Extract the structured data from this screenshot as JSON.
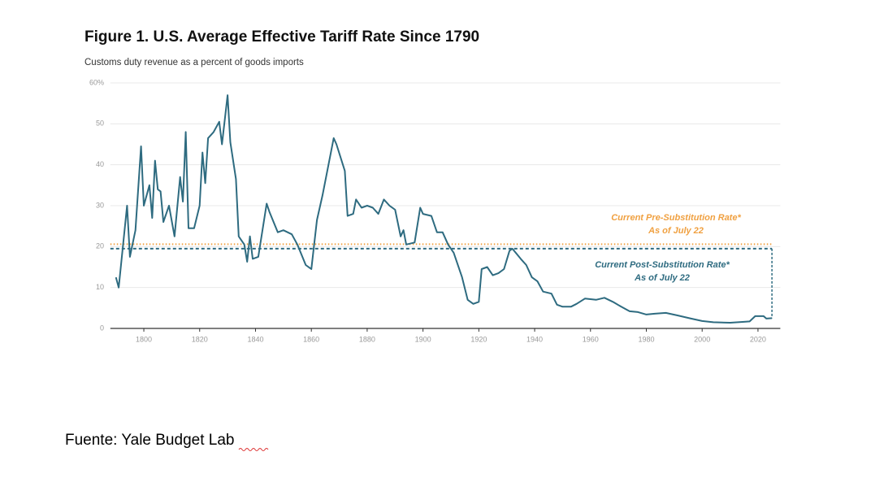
{
  "chart_data": {
    "type": "line",
    "title": "Figure 1. U.S. Average Effective Tariff Rate Since 1790",
    "subtitle": "Customs duty revenue as a percent of goods imports",
    "x": [
      1790,
      1791,
      1794,
      1795,
      1797,
      1799,
      1800,
      1802,
      1803,
      1804,
      1805,
      1806,
      1807,
      1809,
      1811,
      1813,
      1814,
      1815,
      1816,
      1818,
      1820,
      1821,
      1822,
      1823,
      1825,
      1827,
      1828,
      1830,
      1831,
      1833,
      1834,
      1836,
      1837,
      1838,
      1839,
      1841,
      1844,
      1845,
      1848,
      1850,
      1853,
      1855,
      1858,
      1860,
      1862,
      1864,
      1866,
      1868,
      1869,
      1872,
      1873,
      1875,
      1876,
      1878,
      1880,
      1882,
      1884,
      1886,
      1888,
      1890,
      1892,
      1893,
      1894,
      1897,
      1899,
      1900,
      1903,
      1905,
      1907,
      1909,
      1911,
      1914,
      1916,
      1918,
      1920,
      1921,
      1923,
      1925,
      1927,
      1929,
      1931,
      1932,
      1935,
      1937,
      1939,
      1941,
      1943,
      1946,
      1948,
      1950,
      1953,
      1955,
      1958,
      1962,
      1965,
      1968,
      1971,
      1974,
      1977,
      1980,
      1983,
      1987,
      1991,
      1996,
      2000,
      2004,
      2010,
      2015,
      2017,
      2019,
      2022,
      2023,
      2025
    ],
    "series": [
      {
        "name": "Average effective tariff rate",
        "color": "#2e6b80",
        "values": [
          12.5,
          10,
          30,
          17.5,
          24,
          44.5,
          30,
          35,
          27,
          41,
          34,
          33.5,
          26,
          30,
          22.5,
          37,
          31,
          48,
          24.5,
          24.5,
          30,
          43,
          35.5,
          46.5,
          48,
          50.5,
          45,
          57,
          45.5,
          36.5,
          22.5,
          20.5,
          16.3,
          22.5,
          17,
          17.5,
          30.5,
          28.5,
          23.5,
          24,
          23,
          20.5,
          15.5,
          14.5,
          26.5,
          32.5,
          39.5,
          46.5,
          45,
          38.5,
          27.5,
          28,
          31.5,
          29.5,
          30,
          29.5,
          28,
          31.5,
          30,
          29,
          22.5,
          24,
          20.5,
          21,
          29.5,
          28,
          27.5,
          23.5,
          23.5,
          20.5,
          18.5,
          12.5,
          7,
          6,
          6.5,
          14.5,
          15,
          13,
          13.5,
          14.5,
          19,
          19.5,
          17,
          15.5,
          12.5,
          11.5,
          9,
          8.5,
          5.8,
          5.3,
          5.3,
          6,
          7.3,
          7,
          7.5,
          6.5,
          5.3,
          4.2,
          4,
          3.4,
          3.6,
          3.8,
          3.2,
          2.4,
          1.8,
          1.5,
          1.4,
          1.6,
          1.7,
          3,
          3,
          2.4,
          2.5
        ]
      }
    ],
    "reference_lines": [
      {
        "value": 20.6,
        "color": "#f0a040",
        "style": "dotted",
        "label": [
          "Current Pre-Substitution Rate*",
          "As of July 22"
        ]
      },
      {
        "value": 19.5,
        "color": "#2e6b80",
        "style": "dashed",
        "label": [
          "Current Post-Substitution Rate*",
          "As of July 22"
        ]
      }
    ],
    "xlim": [
      1788,
      2028
    ],
    "xticks": [
      1800,
      1820,
      1840,
      1860,
      1880,
      1900,
      1920,
      1940,
      1960,
      1980,
      2000,
      2020
    ],
    "ylim": [
      0,
      60
    ],
    "yticks": [
      0,
      10,
      20,
      30,
      40,
      50,
      {
        "value": 60,
        "label": "60%"
      }
    ],
    "grid": true
  },
  "source": "Fuente: Yale Budget Lab"
}
